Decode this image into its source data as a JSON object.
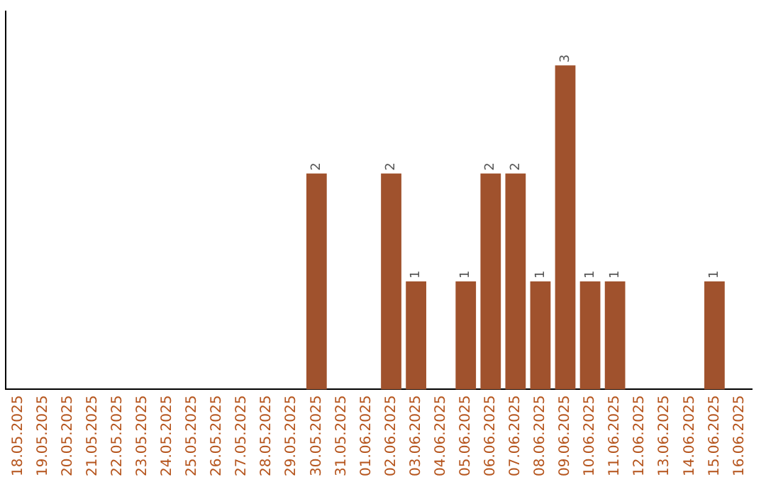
{
  "chart_data": {
    "type": "bar",
    "categories": [
      "18.05.2025",
      "19.05.2025",
      "20.05.2025",
      "21.05.2025",
      "22.05.2025",
      "23.05.2025",
      "24.05.2025",
      "25.05.2025",
      "26.05.2025",
      "27.05.2025",
      "28.05.2025",
      "29.05.2025",
      "30.05.2025",
      "31.05.2025",
      "01.06.2025",
      "02.06.2025",
      "03.06.2025",
      "04.06.2025",
      "05.06.2025",
      "06.06.2025",
      "07.06.2025",
      "08.06.2025",
      "09.06.2025",
      "10.06.2025",
      "11.06.2025",
      "12.06.2025",
      "13.06.2025",
      "14.06.2025",
      "15.06.2025",
      "16.06.2025"
    ],
    "values": [
      null,
      null,
      null,
      null,
      null,
      null,
      null,
      null,
      null,
      null,
      null,
      null,
      2,
      null,
      null,
      2,
      1,
      null,
      1,
      2,
      2,
      1,
      3,
      1,
      1,
      null,
      null,
      null,
      1,
      null
    ],
    "data_labels": true,
    "color": "#a0522d",
    "tick_labels": "x",
    "grid": false,
    "legend": false
  }
}
